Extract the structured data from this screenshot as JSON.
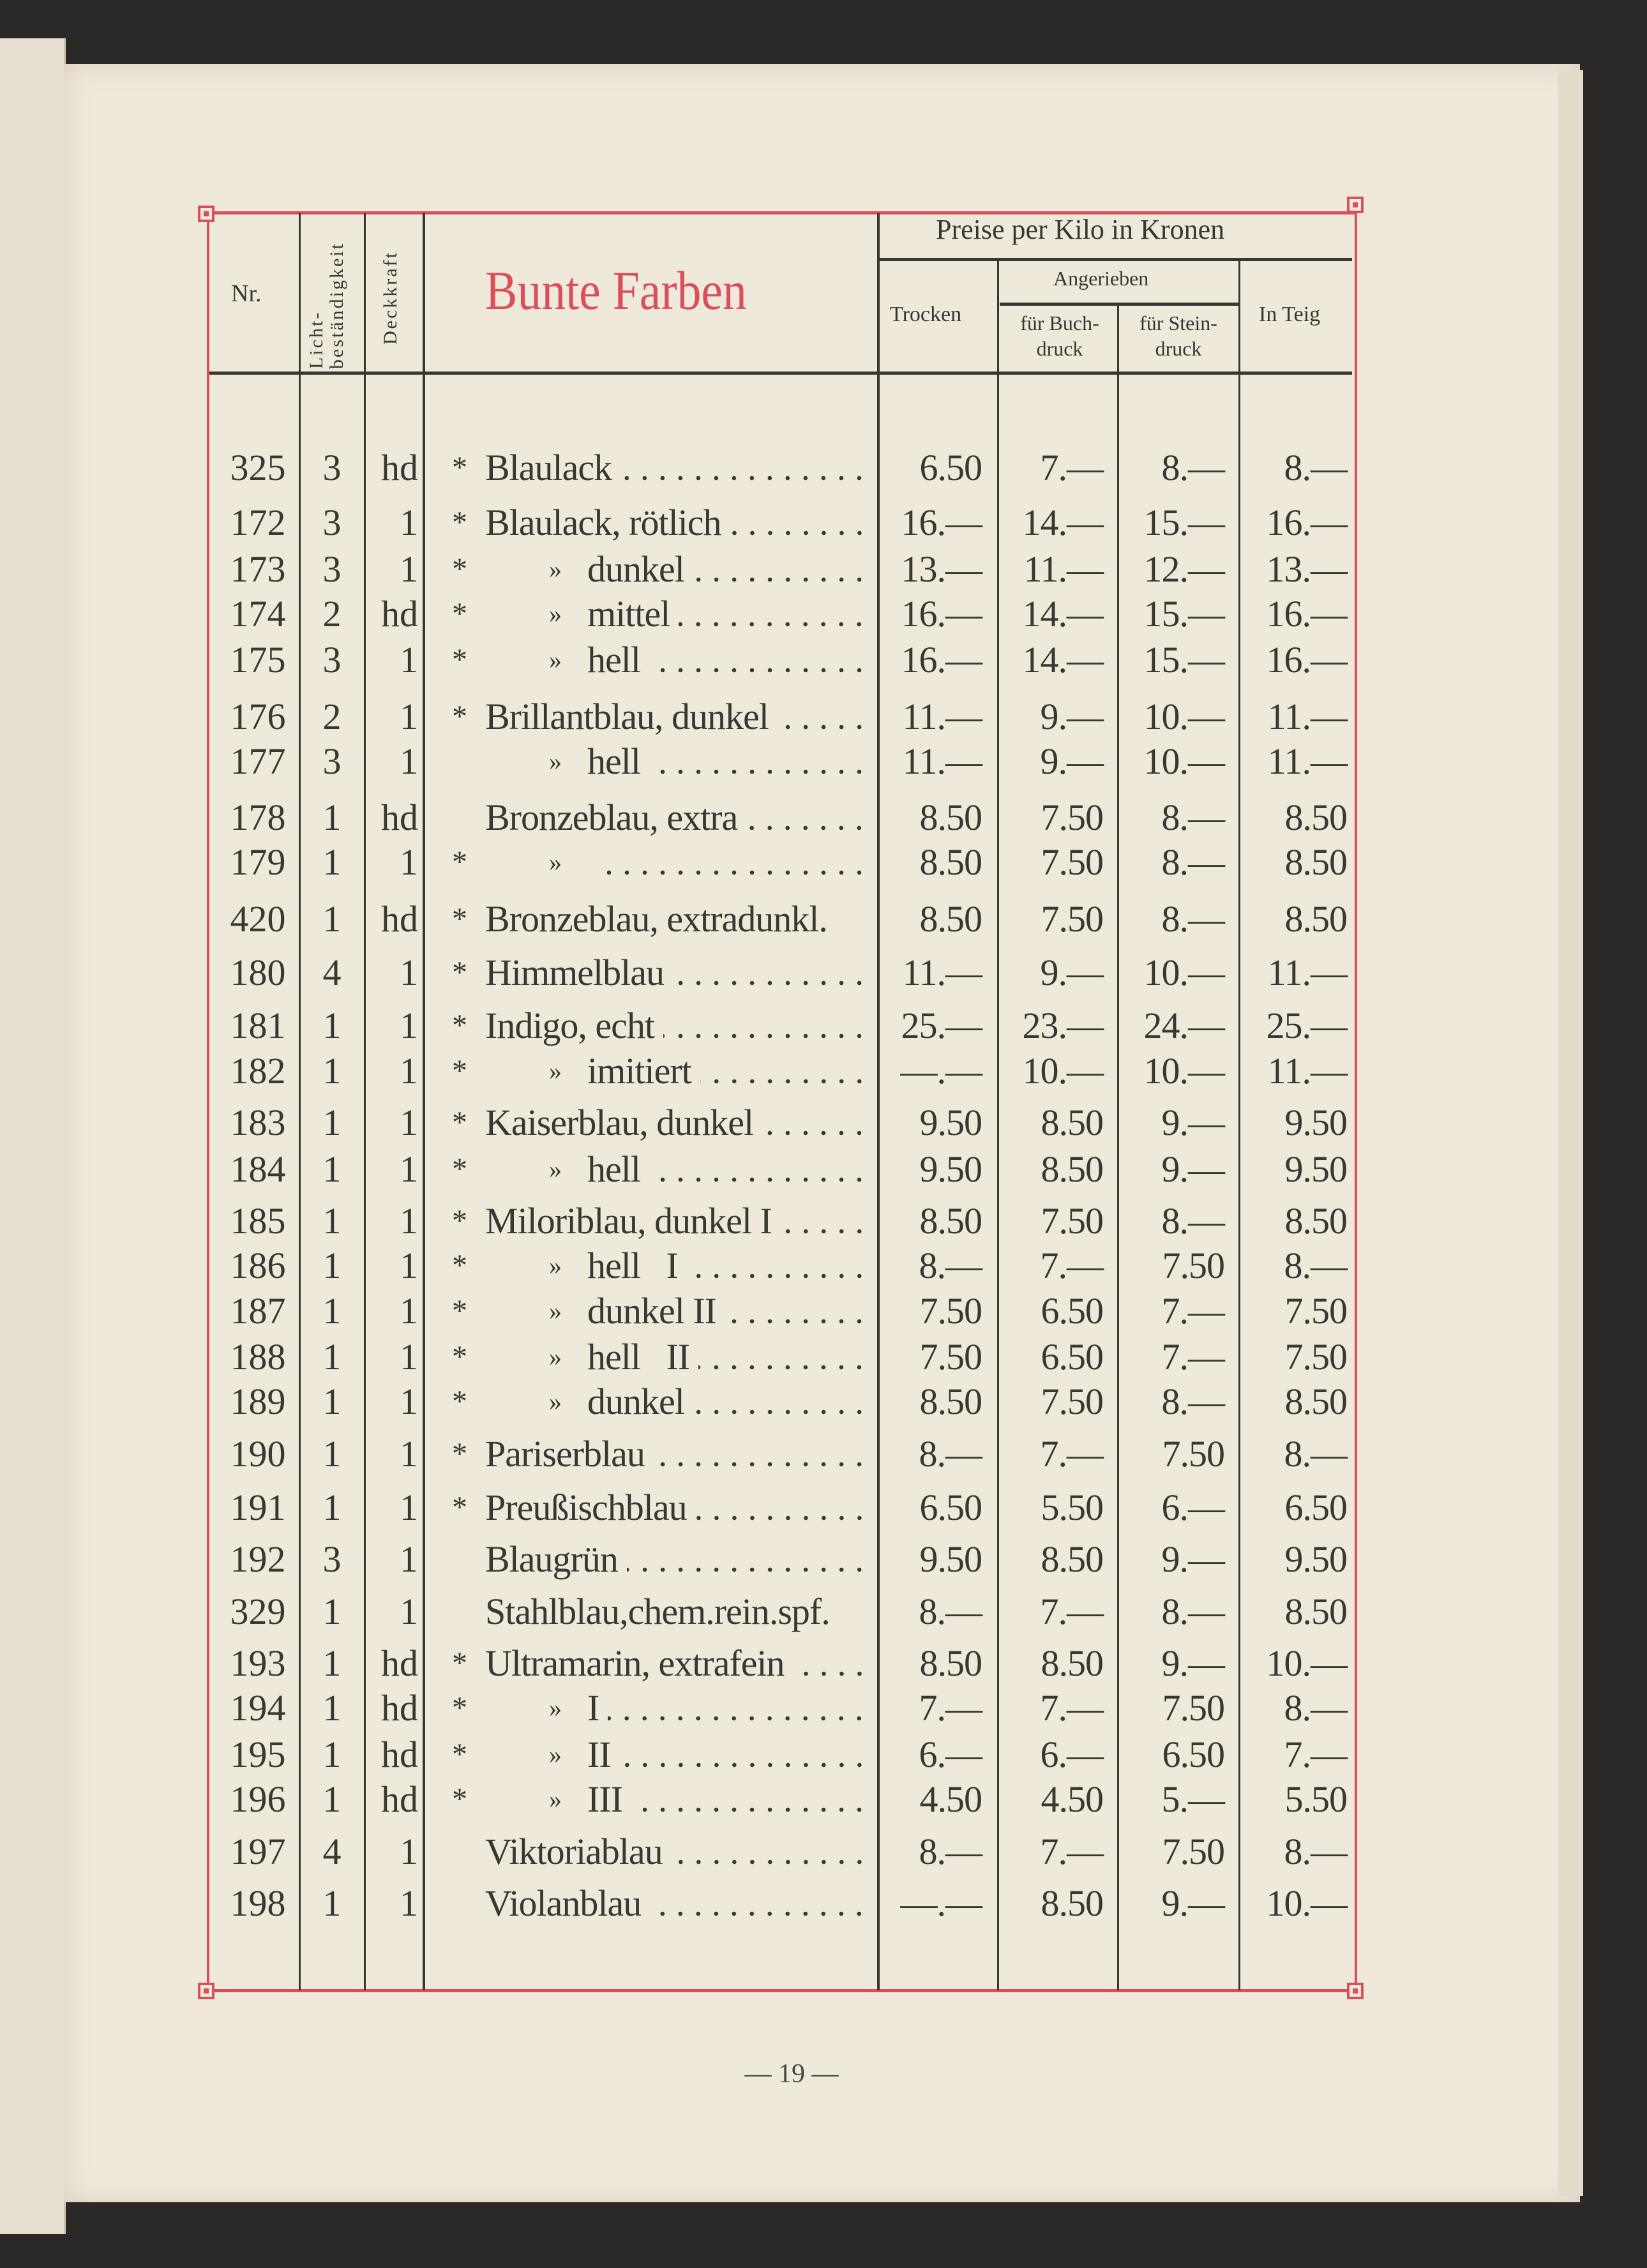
{
  "header": {
    "nr": "Nr.",
    "lichtbestaendigkeit_1": "Licht-",
    "lichtbestaendigkeit_2": "beständigkeit",
    "deckkraft": "Deckkraft",
    "title": "Bunte Farben",
    "preise": "Preise per Kilo in Kronen",
    "trocken": "Trocken",
    "angerieben": "Angerieben",
    "buchdruck_1": "für Buch-",
    "buchdruck_2": "druck",
    "steindruck_1": "für Stein-",
    "steindruck_2": "druck",
    "in_teig": "In Teig"
  },
  "accent_color": "#d9505a",
  "rows": [
    {
      "nr": "325",
      "licht": "3",
      "deck": "hd",
      "star": "*",
      "ditto": "",
      "name": "Blaulack",
      "trocken": "6.50",
      "buch": "7.—",
      "stein": "8.—",
      "teig": "8.—"
    },
    {
      "nr": "172",
      "licht": "3",
      "deck": "1",
      "star": "*",
      "ditto": "",
      "name": "Blaulack, rötlich",
      "trocken": "16.—",
      "buch": "14.—",
      "stein": "15.—",
      "teig": "16.—"
    },
    {
      "nr": "173",
      "licht": "3",
      "deck": "1",
      "star": "*",
      "ditto": "»",
      "name": "dunkel",
      "trocken": "13.—",
      "buch": "11.—",
      "stein": "12.—",
      "teig": "13.—"
    },
    {
      "nr": "174",
      "licht": "2",
      "deck": "hd",
      "star": "*",
      "ditto": "»",
      "name": "mittel",
      "trocken": "16.—",
      "buch": "14.—",
      "stein": "15.—",
      "teig": "16.—"
    },
    {
      "nr": "175",
      "licht": "3",
      "deck": "1",
      "star": "*",
      "ditto": "»",
      "name": "hell",
      "trocken": "16.—",
      "buch": "14.—",
      "stein": "15.—",
      "teig": "16.—"
    },
    {
      "nr": "176",
      "licht": "2",
      "deck": "1",
      "star": "*",
      "ditto": "",
      "name": "Brillantblau, dunkel",
      "trocken": "11.—",
      "buch": "9.—",
      "stein": "10.—",
      "teig": "11.—"
    },
    {
      "nr": "177",
      "licht": "3",
      "deck": "1",
      "star": "",
      "ditto": "»",
      "name": "hell",
      "trocken": "11.—",
      "buch": "9.—",
      "stein": "10.—",
      "teig": "11.—"
    },
    {
      "nr": "178",
      "licht": "1",
      "deck": "hd",
      "star": "",
      "ditto": "",
      "name": "Bronzeblau, extra",
      "trocken": "8.50",
      "buch": "7.50",
      "stein": "8.—",
      "teig": "8.50"
    },
    {
      "nr": "179",
      "licht": "1",
      "deck": "1",
      "star": "*",
      "ditto": "»",
      "name": "",
      "trocken": "8.50",
      "buch": "7.50",
      "stein": "8.—",
      "teig": "8.50"
    },
    {
      "nr": "420",
      "licht": "1",
      "deck": "hd",
      "star": "*",
      "ditto": "",
      "name": "Bronzeblau, extradunkl.",
      "trocken": "8.50",
      "buch": "7.50",
      "stein": "8.—",
      "teig": "8.50"
    },
    {
      "nr": "180",
      "licht": "4",
      "deck": "1",
      "star": "*",
      "ditto": "",
      "name": "Himmelblau",
      "trocken": "11.—",
      "buch": "9.—",
      "stein": "10.—",
      "teig": "11.—"
    },
    {
      "nr": "181",
      "licht": "1",
      "deck": "1",
      "star": "*",
      "ditto": "",
      "name": "Indigo, echt",
      "trocken": "25.—",
      "buch": "23.—",
      "stein": "24.—",
      "teig": "25.—"
    },
    {
      "nr": "182",
      "licht": "1",
      "deck": "1",
      "star": "*",
      "ditto": "»",
      "name": "imitiert",
      "trocken": "—.—",
      "buch": "10.—",
      "stein": "10.—",
      "teig": "11.—"
    },
    {
      "nr": "183",
      "licht": "1",
      "deck": "1",
      "star": "*",
      "ditto": "",
      "name": "Kaiserblau, dunkel",
      "trocken": "9.50",
      "buch": "8.50",
      "stein": "9.—",
      "teig": "9.50"
    },
    {
      "nr": "184",
      "licht": "1",
      "deck": "1",
      "star": "*",
      "ditto": "»",
      "name": "hell",
      "trocken": "9.50",
      "buch": "8.50",
      "stein": "9.—",
      "teig": "9.50"
    },
    {
      "nr": "185",
      "licht": "1",
      "deck": "1",
      "star": "*",
      "ditto": "",
      "name": "Miloriblau, dunkel I",
      "trocken": "8.50",
      "buch": "7.50",
      "stein": "8.—",
      "teig": "8.50"
    },
    {
      "nr": "186",
      "licht": "1",
      "deck": "1",
      "star": "*",
      "ditto": "»",
      "name": "hell   I",
      "trocken": "8.—",
      "buch": "7.—",
      "stein": "7.50",
      "teig": "8.—"
    },
    {
      "nr": "187",
      "licht": "1",
      "deck": "1",
      "star": "*",
      "ditto": "»",
      "name": "dunkel II",
      "trocken": "7.50",
      "buch": "6.50",
      "stein": "7.—",
      "teig": "7.50"
    },
    {
      "nr": "188",
      "licht": "1",
      "deck": "1",
      "star": "*",
      "ditto": "»",
      "name": "hell   II",
      "trocken": "7.50",
      "buch": "6.50",
      "stein": "7.—",
      "teig": "7.50"
    },
    {
      "nr": "189",
      "licht": "1",
      "deck": "1",
      "star": "*",
      "ditto": "»",
      "name": "dunkel",
      "trocken": "8.50",
      "buch": "7.50",
      "stein": "8.—",
      "teig": "8.50"
    },
    {
      "nr": "190",
      "licht": "1",
      "deck": "1",
      "star": "*",
      "ditto": "",
      "name": "Pariserblau",
      "trocken": "8.—",
      "buch": "7.—",
      "stein": "7.50",
      "teig": "8.—"
    },
    {
      "nr": "191",
      "licht": "1",
      "deck": "1",
      "star": "*",
      "ditto": "",
      "name": "Preußischblau",
      "trocken": "6.50",
      "buch": "5.50",
      "stein": "6.—",
      "teig": "6.50"
    },
    {
      "nr": "192",
      "licht": "3",
      "deck": "1",
      "star": "",
      "ditto": "",
      "name": "Blaugrün",
      "trocken": "9.50",
      "buch": "8.50",
      "stein": "9.—",
      "teig": "9.50"
    },
    {
      "nr": "329",
      "licht": "1",
      "deck": "1",
      "star": "",
      "ditto": "",
      "name": "Stahlblau,chem.rein.spf.",
      "trocken": "8.—",
      "buch": "7.—",
      "stein": "8.—",
      "teig": "8.50"
    },
    {
      "nr": "193",
      "licht": "1",
      "deck": "hd",
      "star": "*",
      "ditto": "",
      "name": "Ultramarin, extrafein",
      "trocken": "8.50",
      "buch": "8.50",
      "stein": "9.—",
      "teig": "10.—"
    },
    {
      "nr": "194",
      "licht": "1",
      "deck": "hd",
      "star": "*",
      "ditto": "»",
      "name": "I",
      "trocken": "7.—",
      "buch": "7.—",
      "stein": "7.50",
      "teig": "8.—"
    },
    {
      "nr": "195",
      "licht": "1",
      "deck": "hd",
      "star": "*",
      "ditto": "»",
      "name": "II",
      "trocken": "6.—",
      "buch": "6.—",
      "stein": "6.50",
      "teig": "7.—"
    },
    {
      "nr": "196",
      "licht": "1",
      "deck": "hd",
      "star": "*",
      "ditto": "»",
      "name": "III",
      "trocken": "4.50",
      "buch": "4.50",
      "stein": "5.—",
      "teig": "5.50"
    },
    {
      "nr": "197",
      "licht": "4",
      "deck": "1",
      "star": "",
      "ditto": "",
      "name": "Viktoriablau",
      "trocken": "8.—",
      "buch": "7.—",
      "stein": "7.50",
      "teig": "8.—"
    },
    {
      "nr": "198",
      "licht": "1",
      "deck": "1",
      "star": "",
      "ditto": "",
      "name": "Violanblau",
      "trocken": "—.—",
      "buch": "8.50",
      "stein": "9.—",
      "teig": "10.—"
    }
  ],
  "footer": {
    "page_number": "— 19 —"
  }
}
